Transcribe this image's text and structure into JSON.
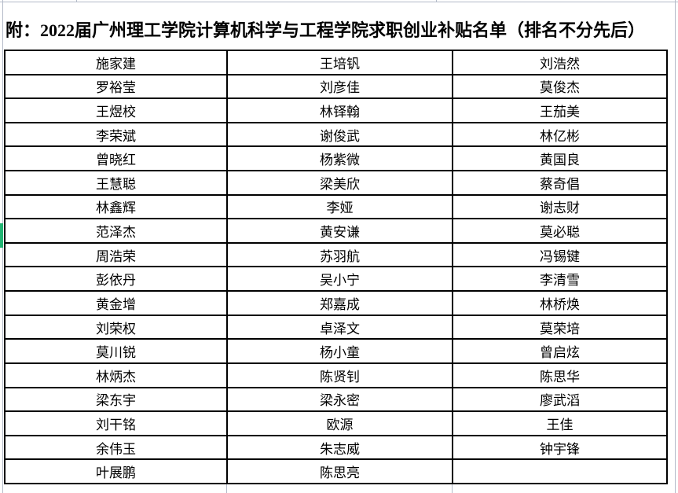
{
  "title": "附：2022届广州理工学院计算机科学与工程学院求职创业补贴名单（排名不分先后）",
  "table": {
    "columns": 3,
    "rows": [
      [
        "施家建",
        "王培钒",
        "刘浩然"
      ],
      [
        "罗裕莹",
        "刘彦佳",
        "莫俊杰"
      ],
      [
        "王煜校",
        "林铎翰",
        "王茄美"
      ],
      [
        "李荣斌",
        "谢俊武",
        "林亿彬"
      ],
      [
        "曾晓红",
        "杨紫微",
        "黄国良"
      ],
      [
        "王慧聪",
        "梁美欣",
        "蔡奇倡"
      ],
      [
        "林鑫辉",
        "李娅",
        "谢志财"
      ],
      [
        "范泽杰",
        "黄安谦",
        "莫必聪"
      ],
      [
        "周浩荣",
        "苏羽航",
        "冯锡键"
      ],
      [
        "彭依丹",
        "吴小宁",
        "李清雪"
      ],
      [
        "黄金增",
        "郑嘉成",
        "林桥焕"
      ],
      [
        "刘荣权",
        "卓泽文",
        "莫荣培"
      ],
      [
        "莫川锐",
        "杨小童",
        "曾启炫"
      ],
      [
        "林炳杰",
        "陈贤钊",
        "陈思华"
      ],
      [
        "梁东宇",
        "梁永密",
        "廖武滔"
      ],
      [
        "刘干铭",
        "欧源",
        "王佳"
      ],
      [
        "余伟玉",
        "朱志威",
        "钟宇锋"
      ],
      [
        "叶展鹏",
        "陈思亮",
        ""
      ]
    ],
    "selected_row_index": 7,
    "selected_col_index": 0
  },
  "colors": {
    "selection_green": "#22b573",
    "gridline": "#b3bac8",
    "table_border": "#000000",
    "background": "#ffffff",
    "text": "#000000"
  }
}
